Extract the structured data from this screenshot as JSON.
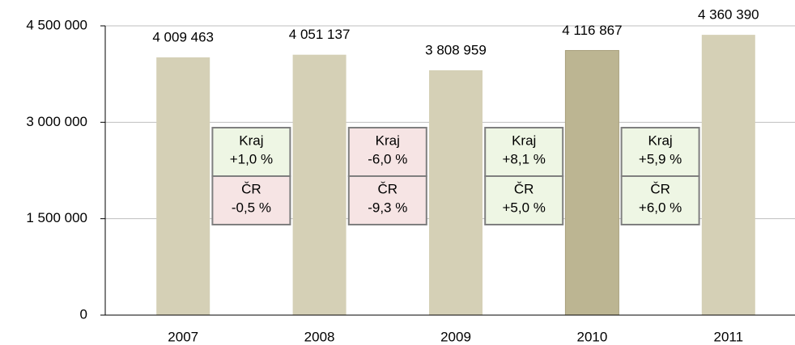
{
  "chart_data": {
    "type": "bar",
    "categories": [
      "2007",
      "2008",
      "2009",
      "2010",
      "2011"
    ],
    "values": [
      4009463,
      4051137,
      3808959,
      4116867,
      4360390
    ],
    "value_labels": [
      "4 009 463",
      "4 051 137",
      "3 808 959",
      "4 116 867",
      "4 360 390"
    ],
    "colors": [
      "#d5d0b6",
      "#d5d0b6",
      "#d5d0b6",
      "#bcb592",
      "#d5d0b6"
    ],
    "ylim": [
      0,
      4500000
    ],
    "yticks": [
      0,
      {
        "value": 1500000,
        "label": "1 500 000"
      },
      {
        "value": 3000000,
        "label": "3 000 000"
      },
      {
        "value": 4500000,
        "label": "4 500 000"
      }
    ],
    "grid": true,
    "annotations": [
      [
        {
          "label": "Kraj",
          "text": "+1,0 %",
          "color": "#eef6e4"
        },
        {
          "label": "ČR",
          "text": "-0,5 %",
          "color": "#f6e4e4"
        }
      ],
      [
        {
          "label": "Kraj",
          "text": "-6,0 %",
          "color": "#f6e4e4"
        },
        {
          "label": "ČR",
          "text": "-9,3 %",
          "color": "#f6e4e4"
        }
      ],
      [
        {
          "label": "Kraj",
          "text": "+8,1 %",
          "color": "#eef6e4"
        },
        {
          "label": "ČR",
          "text": "+5,0 %",
          "color": "#eef6e4"
        }
      ],
      [
        {
          "label": "Kraj",
          "text": "+5,9 %",
          "color": "#eef6e4"
        },
        {
          "label": "ČR",
          "text": "+6,0 %",
          "color": "#eef6e4"
        }
      ]
    ]
  }
}
